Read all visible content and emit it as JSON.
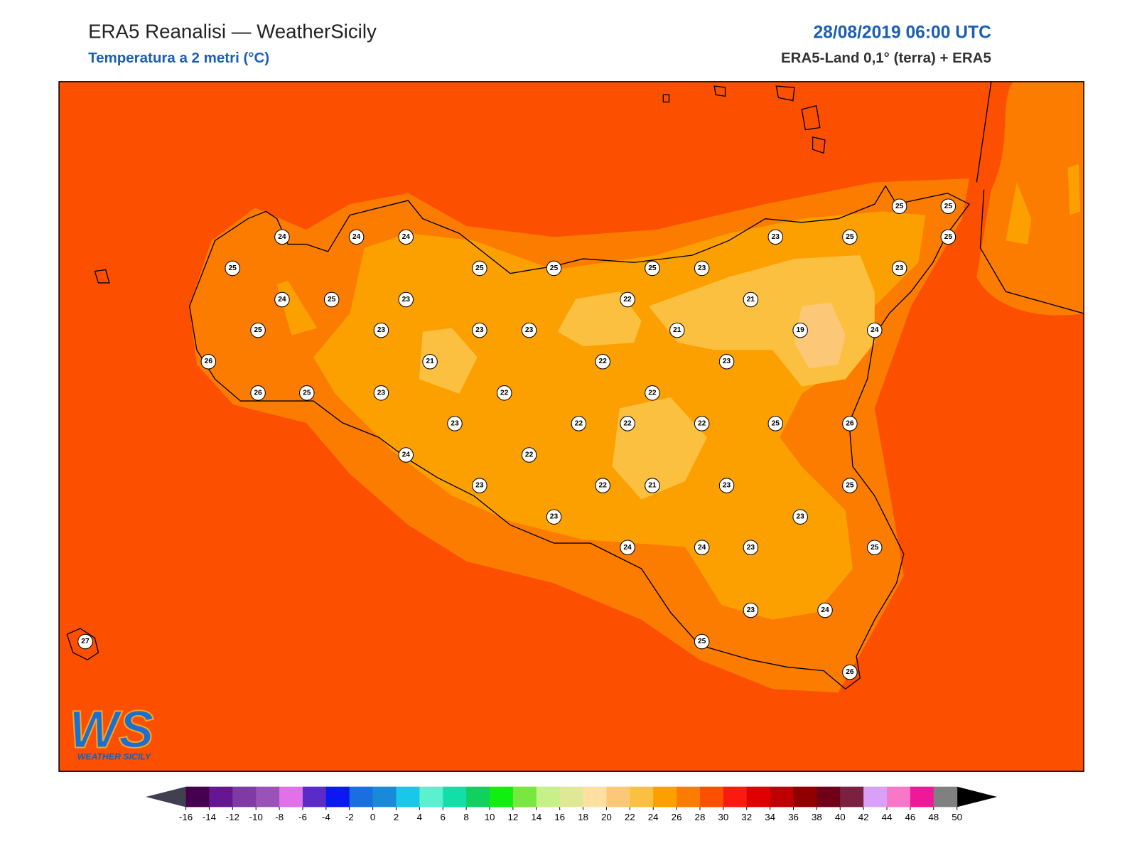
{
  "header": {
    "title": "ERA5 Reanalisi — WeatherSicily",
    "subtitle": "Temperatura a 2 metri (°C)",
    "datetime": "28/08/2019 06:00 UTC",
    "source": "ERA5-Land 0,1° (terra) + ERA5"
  },
  "stations": [
    24,
    24,
    24,
    25,
    25,
    25,
    25,
    23,
    23,
    25,
    25,
    25,
    25,
    23,
    24,
    25,
    23,
    22,
    21,
    25,
    23,
    23,
    23,
    21,
    19,
    24,
    26,
    21,
    22,
    23,
    26,
    25,
    23,
    22,
    22,
    23,
    22,
    22,
    22,
    25,
    26,
    24,
    22,
    23,
    22,
    21,
    23,
    25,
    23,
    23,
    24,
    24,
    23,
    25,
    23,
    24,
    25,
    27,
    26
  ],
  "colorbar": {
    "ticks": [
      -16,
      -14,
      -12,
      -10,
      -8,
      -6,
      -4,
      -2,
      0,
      2,
      4,
      6,
      8,
      10,
      12,
      14,
      16,
      18,
      20,
      22,
      24,
      26,
      28,
      30,
      32,
      34,
      36,
      38,
      40,
      42,
      44,
      46,
      48,
      50
    ],
    "colors": [
      "#45004f",
      "#661690",
      "#7e3ba3",
      "#9a52b8",
      "#e071e8",
      "#5a2bc8",
      "#0a18f2",
      "#1a6fe0",
      "#1a8ad8",
      "#18c8e8",
      "#5af0d0",
      "#10e0a8",
      "#10d060",
      "#10f010",
      "#78e840",
      "#c8f08a",
      "#e0e898",
      "#ffe0a0",
      "#fcc878",
      "#fcc040",
      "#fca000",
      "#fc7c00",
      "#fc5000",
      "#fc1a10",
      "#e00000",
      "#c00000",
      "#900000",
      "#700018",
      "#7a2040",
      "#d8a0f8",
      "#f878c8",
      "#f01898",
      "#808080",
      "#3c3c3c"
    ],
    "under_color": "#404050",
    "over_color": "#000000"
  },
  "logo": {
    "mark": "WS",
    "text": "WEATHER SICILY"
  }
}
